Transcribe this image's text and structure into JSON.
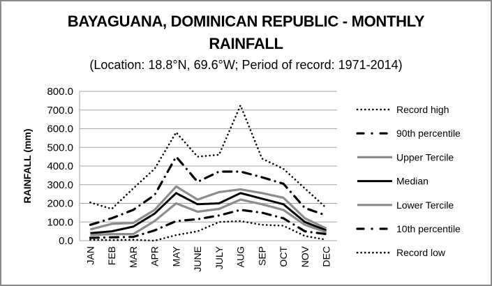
{
  "chart_data": {
    "type": "line",
    "title_line1": "BAYAGUANA, DOMINICAN REPUBLIC - MONTHLY",
    "title_line2": "RAINFALL",
    "subtitle": "(Location: 18.8°N, 69.6°W; Period of record: 1971-2014)",
    "xlabel": "",
    "ylabel": "RAINFALL (mm)",
    "ylim": [
      0,
      800
    ],
    "yticks": [
      "0.0",
      "100.0",
      "200.0",
      "300.0",
      "400.0",
      "500.0",
      "600.0",
      "700.0",
      "800.0"
    ],
    "ytick_values": [
      0,
      100,
      200,
      300,
      400,
      500,
      600,
      700,
      800
    ],
    "grid": true,
    "legend_position": "right",
    "categories": [
      "JAN",
      "FEB",
      "MAR",
      "APR",
      "MAY",
      "JUNE",
      "JULY",
      "AUG",
      "SEP",
      "OCT",
      "NOV",
      "DEC"
    ],
    "series": [
      {
        "name": "Record high",
        "style": "dotted",
        "color": "#000000",
        "values": [
          205,
          170,
          280,
          385,
          580,
          450,
          460,
          725,
          440,
          385,
          280,
          175
        ]
      },
      {
        "name": "90th percentile",
        "style": "dash-dot",
        "color": "#000000",
        "values": [
          85,
          120,
          165,
          245,
          450,
          315,
          370,
          370,
          340,
          305,
          175,
          135
        ]
      },
      {
        "name": "Upper Tercile",
        "style": "solid",
        "color": "#8c8c8c",
        "values": [
          60,
          90,
          95,
          165,
          290,
          220,
          260,
          275,
          255,
          230,
          120,
          65
        ]
      },
      {
        "name": "Median",
        "style": "solid",
        "color": "#000000",
        "values": [
          40,
          50,
          75,
          145,
          255,
          195,
          200,
          255,
          225,
          195,
          100,
          55
        ]
      },
      {
        "name": "Lower Tercile",
        "style": "solid",
        "color": "#8c8c8c",
        "values": [
          30,
          35,
          35,
          105,
          200,
          155,
          170,
          220,
          195,
          165,
          85,
          45
        ]
      },
      {
        "name": "10th percentile",
        "style": "dash-dot",
        "color": "#000000",
        "values": [
          15,
          18,
          20,
          55,
          105,
          115,
          135,
          165,
          150,
          120,
          50,
          35
        ]
      },
      {
        "name": "Record low",
        "style": "dotted",
        "color": "#000000",
        "values": [
          5,
          3,
          5,
          0,
          30,
          50,
          100,
          105,
          85,
          80,
          25,
          5
        ]
      }
    ]
  }
}
